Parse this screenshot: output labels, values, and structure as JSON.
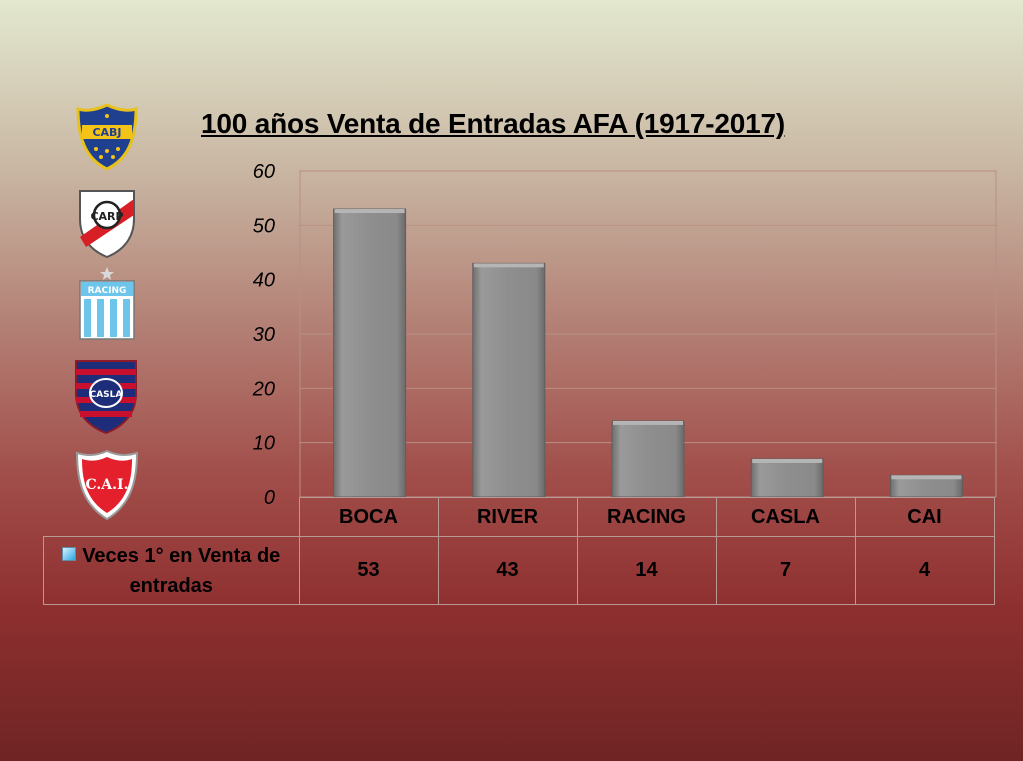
{
  "chart_data": {
    "type": "bar",
    "title": "100 años Venta de Entradas AFA (1917-2017)",
    "categories": [
      "BOCA",
      "RIVER",
      "RACING",
      "CASLA",
      "CAI"
    ],
    "series": [
      {
        "name": "Veces 1° en Venta de entradas",
        "values": [
          53,
          43,
          14,
          7,
          4
        ]
      }
    ],
    "yticks": [
      "0",
      "10",
      "20",
      "30",
      "40",
      "50",
      "60"
    ],
    "ylim": [
      0,
      60
    ],
    "grid": true,
    "legend": "data-table",
    "colors": {
      "bar": "#8c8c8c",
      "bar_edge": "#5e5e5e",
      "grid": "#b88f84",
      "legend_key": "#2aa7df"
    }
  },
  "logos": [
    {
      "name": "boca-logo",
      "text": "CABJ"
    },
    {
      "name": "river-logo",
      "text": "CARP"
    },
    {
      "name": "racing-logo",
      "text": "RACING"
    },
    {
      "name": "casla-logo",
      "text": "CASLA"
    },
    {
      "name": "cai-logo",
      "text": "C.A.I."
    }
  ]
}
